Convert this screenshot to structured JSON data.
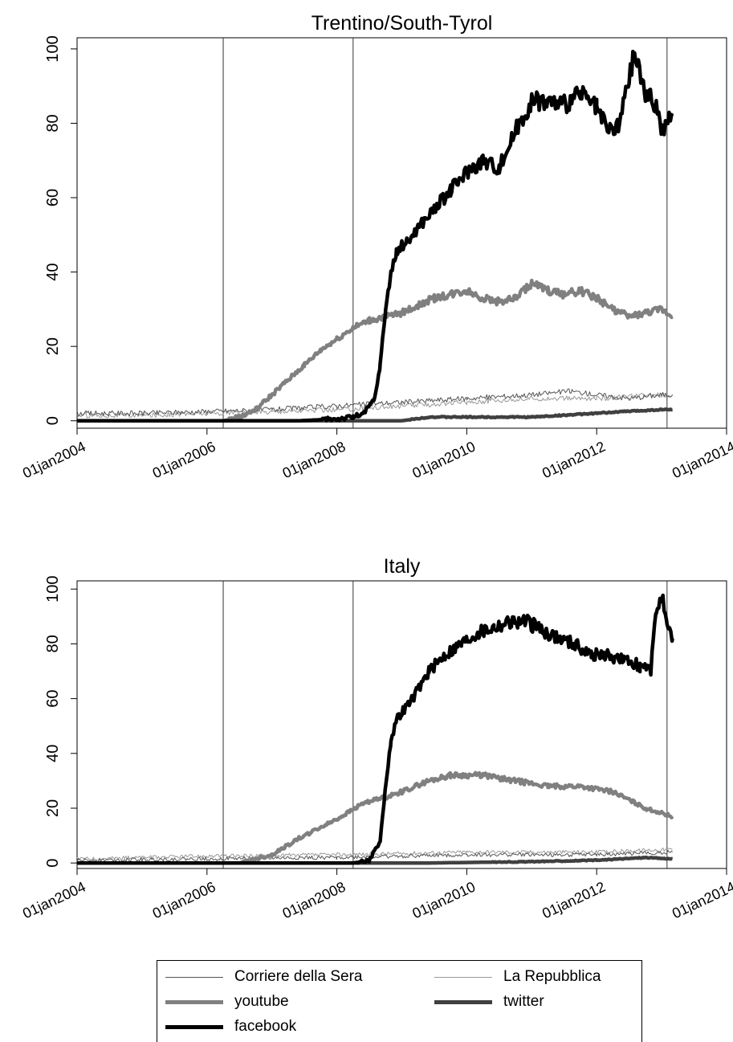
{
  "chart_data": [
    {
      "type": "line",
      "title": "Trentino/South-Tyrol",
      "xlabel": "",
      "ylabel": "",
      "x_ticks": [
        "01jan2004",
        "01jan2006",
        "01jan2008",
        "01jan2010",
        "01jan2012",
        "01jan2014"
      ],
      "x_tick_labels_shown": [
        "01jan2004",
        "01jan2006",
        "01jan2008",
        "01jan2010",
        "01jan2012",
        "01jan2014"
      ],
      "xlim": [
        "2004-01-01",
        "2014-01-01"
      ],
      "ylim": [
        -2,
        103
      ],
      "y_ticks": [
        0,
        20,
        40,
        60,
        80,
        100
      ],
      "y_tick_labels": [
        "0",
        "20",
        "40",
        "60",
        "80",
        "100"
      ],
      "reference_lines_x": [
        "2006-04-01",
        "2008-04-01",
        "2013-02-01"
      ],
      "grid": false,
      "series": [
        {
          "name": "Corriere della Sera",
          "color": "#555555",
          "x": [
            "2004-01",
            "2005-01",
            "2006-01",
            "2007-01",
            "2008-01",
            "2009-01",
            "2010-01",
            "2011-01",
            "2011-08",
            "2012-01",
            "2012-07",
            "2013-01",
            "2013-03"
          ],
          "y": [
            2,
            2,
            2.5,
            3,
            4,
            5,
            6,
            7,
            8,
            7,
            6,
            7,
            7
          ]
        },
        {
          "name": "La Repubblica",
          "color": "#999999",
          "x": [
            "2004-01",
            "2005-01",
            "2006-01",
            "2007-01",
            "2008-01",
            "2009-01",
            "2010-01",
            "2011-01",
            "2012-01",
            "2013-01",
            "2013-03"
          ],
          "y": [
            1.5,
            1.5,
            2,
            2.5,
            3,
            4,
            5,
            6,
            6,
            7,
            7
          ]
        },
        {
          "name": "youtube",
          "color": "#808080",
          "x": [
            "2004-01",
            "2006-04",
            "2006-07",
            "2006-10",
            "2007-01",
            "2007-04",
            "2007-07",
            "2007-10",
            "2008-01",
            "2008-04",
            "2008-07",
            "2008-10",
            "2009-01",
            "2009-04",
            "2009-07",
            "2009-10",
            "2010-01",
            "2010-04",
            "2010-07",
            "2010-10",
            "2011-01",
            "2011-04",
            "2011-07",
            "2011-10",
            "2012-01",
            "2012-04",
            "2012-07",
            "2012-10",
            "2013-01",
            "2013-03"
          ],
          "y": [
            0,
            0,
            1,
            3,
            7,
            11,
            15,
            19,
            22,
            25,
            27,
            28,
            29,
            31,
            33,
            34,
            35,
            33,
            32,
            33,
            37,
            35,
            34,
            35,
            33,
            30,
            28,
            29,
            30,
            28
          ]
        },
        {
          "name": "twitter",
          "color": "#404040",
          "x": [
            "2004-01",
            "2009-01",
            "2009-06",
            "2010-01",
            "2011-01",
            "2012-01",
            "2012-06",
            "2013-01",
            "2013-03"
          ],
          "y": [
            0,
            0,
            1,
            1,
            1,
            2,
            2.5,
            3,
            3
          ]
        },
        {
          "name": "facebook",
          "color": "#000000",
          "x": [
            "2004-01",
            "2007-06",
            "2008-01",
            "2008-04",
            "2008-06",
            "2008-08",
            "2008-09",
            "2008-10",
            "2008-11",
            "2008-12",
            "2009-01",
            "2009-02",
            "2009-04",
            "2009-07",
            "2009-10",
            "2010-01",
            "2010-04",
            "2010-07",
            "2010-10",
            "2011-01",
            "2011-04",
            "2011-07",
            "2011-10",
            "2012-01",
            "2012-03",
            "2012-05",
            "2012-07",
            "2012-08",
            "2012-10",
            "2012-12",
            "2013-01",
            "2013-03"
          ],
          "y": [
            0,
            0,
            0.5,
            1,
            2,
            6,
            15,
            30,
            40,
            45,
            47,
            48,
            52,
            57,
            62,
            67,
            70,
            68,
            78,
            86,
            86,
            85,
            88,
            84,
            78,
            79,
            92,
            99,
            88,
            85,
            78,
            82
          ]
        }
      ]
    },
    {
      "type": "line",
      "title": "Italy",
      "xlabel": "",
      "ylabel": "",
      "x_ticks": [
        "01jan2004",
        "01jan2006",
        "01jan2008",
        "01jan2010",
        "01jan2012",
        "01jan2014"
      ],
      "x_tick_labels_shown": [
        "01jan2004",
        "01jan2006",
        "01jan2008",
        "01jan2010",
        "01jan2012",
        "01jan2014"
      ],
      "xlim": [
        "2004-01-01",
        "2014-01-01"
      ],
      "ylim": [
        -2,
        103
      ],
      "y_ticks": [
        0,
        20,
        40,
        60,
        80,
        100
      ],
      "y_tick_labels": [
        "0",
        "20",
        "40",
        "60",
        "80",
        "100"
      ],
      "reference_lines_x": [
        "2006-04-01",
        "2008-04-01",
        "2013-02-01"
      ],
      "grid": false,
      "series": [
        {
          "name": "Corriere della Sera",
          "color": "#555555",
          "x": [
            "2004-01",
            "2006-01",
            "2008-01",
            "2010-01",
            "2012-01",
            "2013-03"
          ],
          "y": [
            1,
            1.5,
            2,
            3,
            3,
            4
          ]
        },
        {
          "name": "La Repubblica",
          "color": "#999999",
          "x": [
            "2004-01",
            "2005-01",
            "2006-01",
            "2008-01",
            "2010-01",
            "2012-01",
            "2013-03"
          ],
          "y": [
            1.5,
            2,
            2.5,
            3,
            4,
            4,
            5
          ]
        },
        {
          "name": "youtube",
          "color": "#808080",
          "x": [
            "2004-01",
            "2006-07",
            "2007-01",
            "2007-06",
            "2008-01",
            "2008-06",
            "2008-10",
            "2009-01",
            "2009-06",
            "2009-10",
            "2010-04",
            "2010-10",
            "2011-04",
            "2011-10",
            "2012-04",
            "2012-10",
            "2013-03"
          ],
          "y": [
            0,
            0,
            3,
            9,
            16,
            22,
            24,
            26,
            30,
            32,
            32,
            30,
            28,
            28,
            26,
            20,
            17
          ]
        },
        {
          "name": "twitter",
          "color": "#404040",
          "x": [
            "2004-01",
            "2009-06",
            "2011-01",
            "2012-01",
            "2012-10",
            "2013-03"
          ],
          "y": [
            0,
            0,
            0.5,
            1,
            2,
            1.5
          ]
        },
        {
          "name": "facebook",
          "color": "#000000",
          "x": [
            "2004-01",
            "2008-04",
            "2008-07",
            "2008-09",
            "2008-10",
            "2008-11",
            "2008-12",
            "2009-01",
            "2009-03",
            "2009-06",
            "2009-09",
            "2009-12",
            "2010-03",
            "2010-06",
            "2010-09",
            "2010-12",
            "2011-03",
            "2011-06",
            "2011-09",
            "2011-12",
            "2012-03",
            "2012-06",
            "2012-09",
            "2012-11",
            "2012-12",
            "2013-01",
            "2013-02",
            "2013-03"
          ],
          "y": [
            0,
            0,
            1,
            8,
            28,
            45,
            52,
            55,
            60,
            70,
            76,
            80,
            84,
            86,
            88,
            88,
            85,
            82,
            80,
            76,
            76,
            74,
            72,
            70,
            92,
            98,
            85,
            82
          ]
        }
      ]
    }
  ],
  "legend": {
    "items": [
      {
        "label": "Corriere della Sera",
        "color": "#555555",
        "width": "thin"
      },
      {
        "label": "La Repubblica",
        "color": "#999999",
        "width": "thin"
      },
      {
        "label": "youtube",
        "color": "#808080",
        "width": "thick"
      },
      {
        "label": "twitter",
        "color": "#404040",
        "width": "thick"
      },
      {
        "label": "facebook",
        "color": "#000000",
        "width": "thick"
      }
    ]
  }
}
